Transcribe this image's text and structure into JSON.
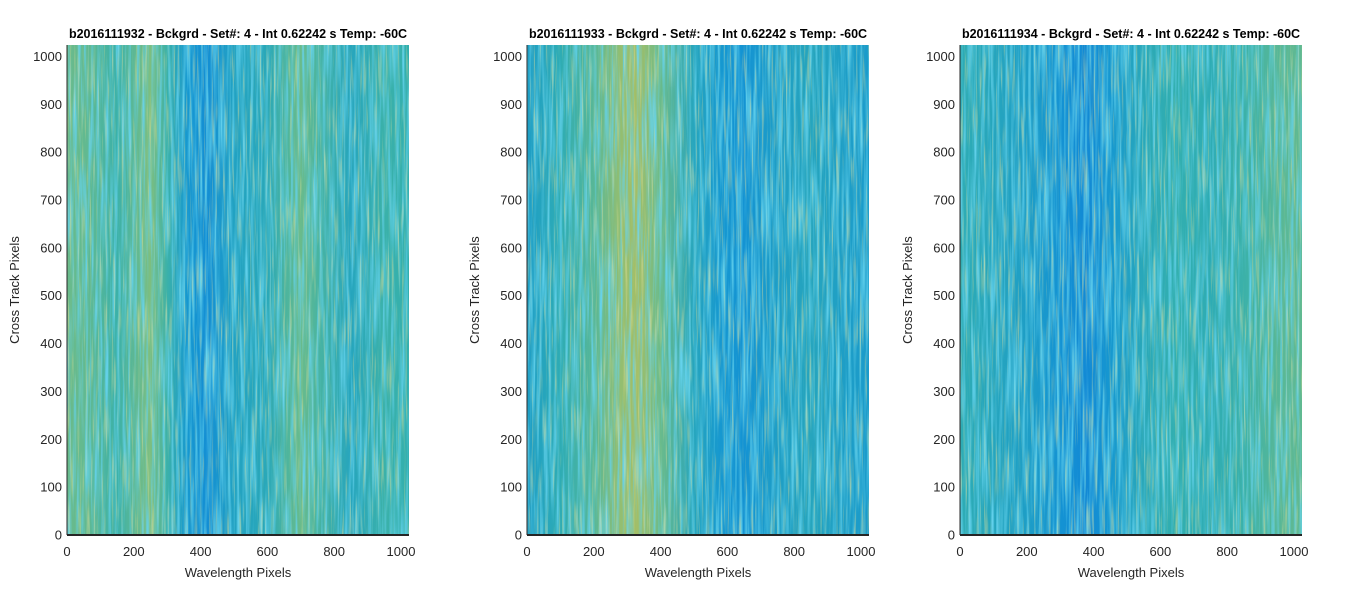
{
  "chart_data": [
    {
      "type": "heatmap",
      "title": "b2016111932 - Bckgrd - Set#: 4 - Int 0.62242 s Temp: -60C",
      "xlabel": "Wavelength Pixels",
      "ylabel": "Cross Track Pixels",
      "xlim": [
        0,
        1024
      ],
      "ylim": [
        0,
        1024
      ],
      "xticks": [
        0,
        200,
        400,
        600,
        800,
        1000
      ],
      "yticks": [
        0,
        100,
        200,
        300,
        400,
        500,
        600,
        700,
        800,
        900,
        1000
      ],
      "colormap": "parula",
      "column_profile": [
        [
          0,
          0.62
        ],
        [
          60,
          0.6
        ],
        [
          150,
          0.52
        ],
        [
          250,
          0.66
        ],
        [
          300,
          0.52
        ],
        [
          360,
          0.36
        ],
        [
          420,
          0.32
        ],
        [
          500,
          0.42
        ],
        [
          600,
          0.46
        ],
        [
          660,
          0.56
        ],
        [
          700,
          0.62
        ],
        [
          750,
          0.55
        ],
        [
          850,
          0.44
        ],
        [
          950,
          0.52
        ],
        [
          1024,
          0.5
        ]
      ]
    },
    {
      "type": "heatmap",
      "title": "b2016111933 - Bckgrd - Set#: 4 - Int 0.62242 s Temp: -60C",
      "xlabel": "Wavelength Pixels",
      "ylabel": "Cross Track Pixels",
      "xlim": [
        0,
        1024
      ],
      "ylim": [
        0,
        1024
      ],
      "xticks": [
        0,
        200,
        400,
        600,
        800,
        1000
      ],
      "yticks": [
        0,
        100,
        200,
        300,
        400,
        500,
        600,
        700,
        800,
        900,
        1000
      ],
      "colormap": "parula",
      "column_profile": [
        [
          0,
          0.4
        ],
        [
          100,
          0.48
        ],
        [
          200,
          0.58
        ],
        [
          280,
          0.7
        ],
        [
          330,
          0.73
        ],
        [
          400,
          0.62
        ],
        [
          500,
          0.44
        ],
        [
          580,
          0.36
        ],
        [
          650,
          0.34
        ],
        [
          750,
          0.4
        ],
        [
          850,
          0.44
        ],
        [
          950,
          0.4
        ],
        [
          1024,
          0.38
        ]
      ]
    },
    {
      "type": "heatmap",
      "title": "b2016111934 - Bckgrd - Set#: 4 - Int 0.62242 s Temp: -60C",
      "xlabel": "Wavelength Pixels",
      "ylabel": "Cross Track Pixels",
      "xlim": [
        0,
        1024
      ],
      "ylim": [
        0,
        1024
      ],
      "xticks": [
        0,
        200,
        400,
        600,
        800,
        1000
      ],
      "yticks": [
        0,
        100,
        200,
        300,
        400,
        500,
        600,
        700,
        800,
        900,
        1000
      ],
      "colormap": "parula",
      "column_profile": [
        [
          0,
          0.48
        ],
        [
          100,
          0.44
        ],
        [
          200,
          0.4
        ],
        [
          300,
          0.34
        ],
        [
          380,
          0.3
        ],
        [
          450,
          0.36
        ],
        [
          550,
          0.46
        ],
        [
          650,
          0.5
        ],
        [
          750,
          0.48
        ],
        [
          850,
          0.52
        ],
        [
          950,
          0.58
        ],
        [
          1024,
          0.6
        ]
      ]
    }
  ]
}
